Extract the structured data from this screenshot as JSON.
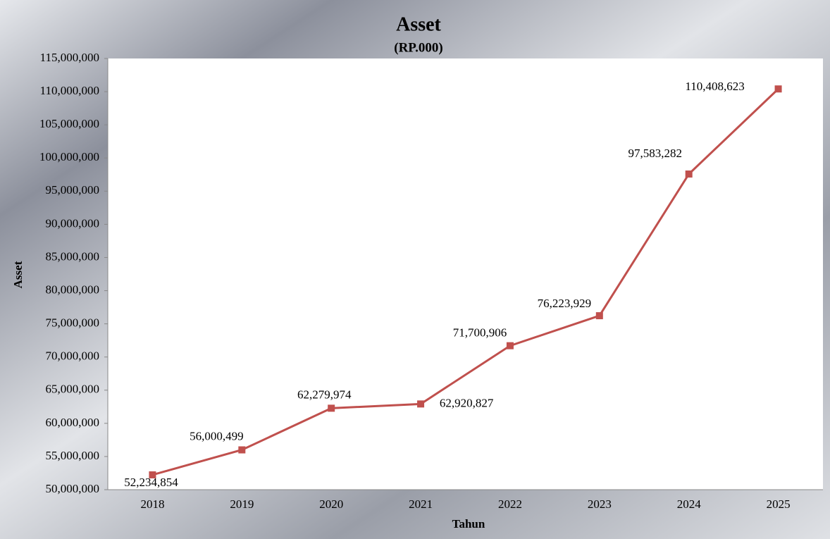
{
  "chart_data": {
    "type": "line",
    "title": "Asset",
    "subtitle": "(RP.000)",
    "x_label": "Tahun",
    "y_label": "Asset",
    "categories": [
      "2018",
      "2019",
      "2020",
      "2021",
      "2022",
      "2023",
      "2024",
      "2025"
    ],
    "series": [
      {
        "name": "Asset",
        "color": "#c0504d",
        "values": [
          52234854,
          56000499,
          62279974,
          62920827,
          71700906,
          76223929,
          97583282,
          110408623
        ],
        "value_labels": [
          "52,234,854",
          "56,000,499",
          "62,279,974",
          "62,920,827",
          "71,700,906",
          "76,223,929",
          "97,583,282",
          "110,408,623"
        ]
      }
    ],
    "ylim": [
      50000000,
      115000000
    ],
    "yticks": [
      {
        "value": 50000000,
        "label": "50,000,000"
      },
      {
        "value": 55000000,
        "label": "55,000,000"
      },
      {
        "value": 60000000,
        "label": "60,000,000"
      },
      {
        "value": 65000000,
        "label": "65,000,000"
      },
      {
        "value": 70000000,
        "label": "70,000,000"
      },
      {
        "value": 75000000,
        "label": "75,000,000"
      },
      {
        "value": 80000000,
        "label": "80,000,000"
      },
      {
        "value": 85000000,
        "label": "85,000,000"
      },
      {
        "value": 90000000,
        "label": "90,000,000"
      },
      {
        "value": 95000000,
        "label": "95,000,000"
      },
      {
        "value": 100000000,
        "label": "100,000,000"
      },
      {
        "value": 105000000,
        "label": "105,000,000"
      },
      {
        "value": 110000000,
        "label": "110,000,000"
      },
      {
        "value": 115000000,
        "label": "115,000,000"
      }
    ],
    "grid": false
  }
}
